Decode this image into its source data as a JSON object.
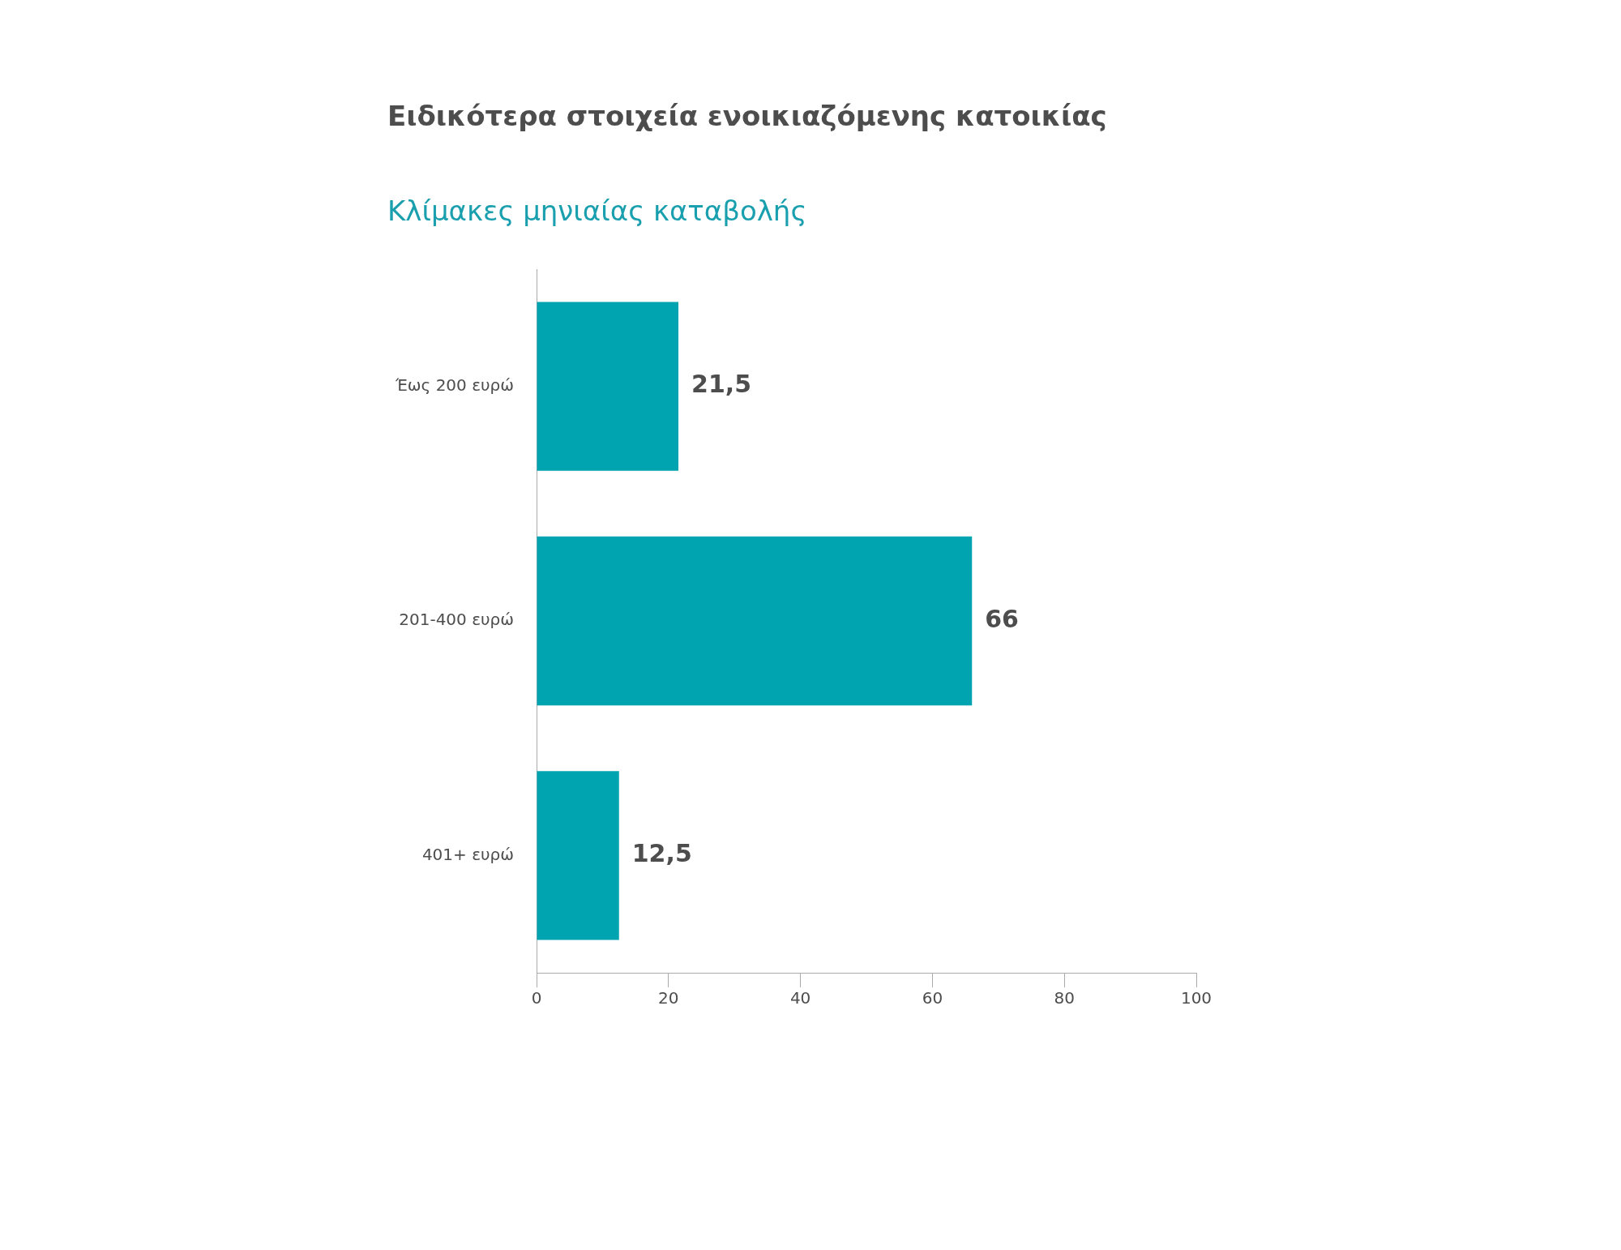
{
  "chart_data": {
    "type": "bar",
    "orientation": "horizontal",
    "title": "Ειδικότερα στοιχεία ενοικιαζόμενης κατοικίας",
    "subtitle": "Κλίμακες μηνιαίας καταβολής",
    "categories": [
      "Έως 200 ευρώ",
      "201-400 ευρώ",
      "401+ ευρώ"
    ],
    "values": [
      21.5,
      66,
      12.5
    ],
    "value_labels": [
      "21,5",
      "66",
      "12,5"
    ],
    "color": "#00a3b0",
    "xlim": [
      0,
      100
    ],
    "xticks": [
      0,
      20,
      40,
      60,
      80,
      100
    ]
  }
}
